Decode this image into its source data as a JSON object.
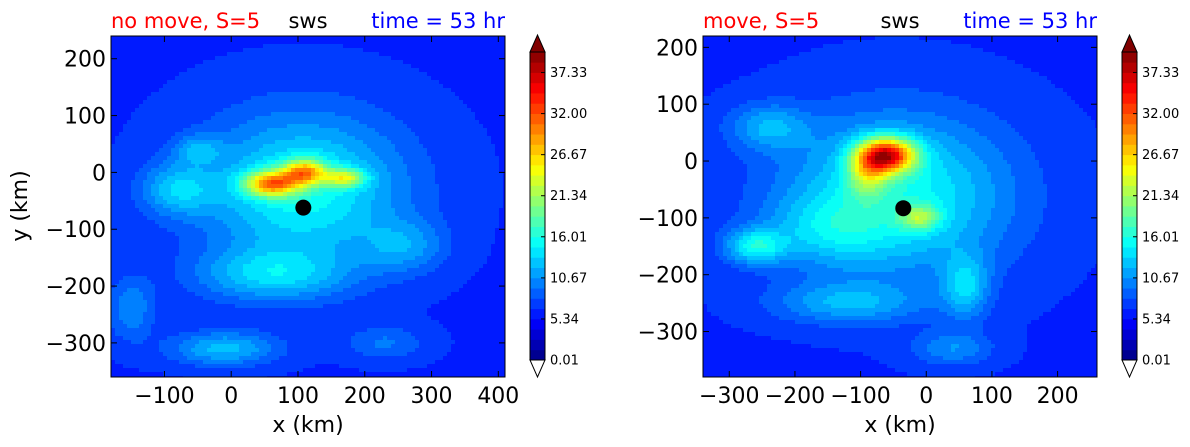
{
  "figure": {
    "panels": [
      {
        "title_left": "no move, S=5",
        "title_center": "sws",
        "title_right": "time = 53 hr",
        "xlabel": "x (km)",
        "ylabel": "y (km)"
      },
      {
        "title_left": "move, S=5",
        "title_center": "sws",
        "title_right": "time = 53 hr",
        "xlabel": "x (km)",
        "ylabel": ""
      }
    ],
    "colors": {
      "title_left": "#ff0000",
      "title_center": "#000000",
      "title_right": "#0000ff",
      "center_marker": "#000000",
      "colormap": "jet",
      "cbar_under": "#ffffff",
      "cbar_over": "#800000"
    }
  },
  "chart_data": [
    {
      "type": "heatmap",
      "variable": "sws",
      "title": "no move, S=5",
      "subtitle": "time = 53 hr",
      "xlabel": "x (km)",
      "ylabel": "y (km)",
      "xlim": [
        -180,
        410
      ],
      "ylim": [
        -360,
        240
      ],
      "xticks": [
        -100,
        0,
        100,
        200,
        300,
        400
      ],
      "yticks": [
        -300,
        -200,
        -100,
        0,
        100,
        200
      ],
      "xtick_labels": [
        "−100",
        "0",
        "100",
        "200",
        "300",
        "400"
      ],
      "ytick_labels": [
        "−300",
        "−200",
        "−100",
        "0",
        "100",
        "200"
      ],
      "center": [
        108,
        -62
      ],
      "max_region": [
        60,
        5
      ],
      "field": {
        "background": 6.5,
        "bumps": [
          [
            108,
            -30,
            150,
            130,
            9
          ],
          [
            60,
            -20,
            40,
            22,
            17
          ],
          [
            110,
            0,
            32,
            22,
            15
          ],
          [
            170,
            -10,
            30,
            16,
            11
          ],
          [
            -80,
            -30,
            55,
            45,
            5.5
          ],
          [
            -50,
            40,
            35,
            25,
            4
          ],
          [
            60,
            -180,
            110,
            45,
            6
          ],
          [
            -10,
            -310,
            80,
            30,
            6
          ],
          [
            -150,
            -240,
            35,
            55,
            4
          ],
          [
            260,
            -130,
            60,
            45,
            4
          ],
          [
            230,
            -300,
            60,
            30,
            3
          ]
        ]
      },
      "colorbar": {
        "vmin": 0.01,
        "vmax": 40.0,
        "tick_values": [
          0.01,
          5.34,
          10.67,
          16.01,
          21.34,
          26.67,
          32.0,
          37.33
        ],
        "tick_labels": [
          "0.01",
          "5.34",
          "10.67",
          "16.01",
          "21.34",
          "26.67",
          "32.00",
          "37.33"
        ],
        "extend": "both"
      },
      "grid": false,
      "legend": "none"
    },
    {
      "type": "heatmap",
      "variable": "sws",
      "title": "move, S=5",
      "subtitle": "time = 53 hr",
      "xlabel": "x (km)",
      "ylabel": "",
      "xlim": [
        -340,
        260
      ],
      "ylim": [
        -380,
        220
      ],
      "xticks": [
        -300,
        -200,
        -100,
        0,
        100,
        200
      ],
      "yticks": [
        -300,
        -200,
        -100,
        0,
        100,
        200
      ],
      "xtick_labels": [
        "−300",
        "−200",
        "−100",
        "0",
        "100",
        "200"
      ],
      "ytick_labels": [
        "−300",
        "−200",
        "−100",
        "0",
        "100",
        "200"
      ],
      "center": [
        -35,
        -83
      ],
      "max_region": [
        -65,
        10
      ],
      "field": {
        "background": 6.5,
        "bumps": [
          [
            -45,
            -60,
            170,
            140,
            9
          ],
          [
            -60,
            10,
            42,
            30,
            24
          ],
          [
            -90,
            -20,
            30,
            40,
            9
          ],
          [
            -10,
            -100,
            30,
            22,
            8
          ],
          [
            -260,
            -150,
            45,
            30,
            8
          ],
          [
            -150,
            -120,
            90,
            60,
            4
          ],
          [
            60,
            -220,
            35,
            55,
            6
          ],
          [
            -120,
            -250,
            110,
            35,
            5
          ],
          [
            40,
            -330,
            60,
            30,
            4
          ],
          [
            -240,
            60,
            60,
            40,
            5
          ]
        ]
      },
      "colorbar": {
        "vmin": 0.01,
        "vmax": 40.0,
        "tick_values": [
          0.01,
          5.34,
          10.67,
          16.01,
          21.34,
          26.67,
          32.0,
          37.33
        ],
        "tick_labels": [
          "0.01",
          "5.34",
          "10.67",
          "16.01",
          "21.34",
          "26.67",
          "32.00",
          "37.33"
        ],
        "extend": "both"
      },
      "grid": false,
      "legend": "none"
    }
  ]
}
